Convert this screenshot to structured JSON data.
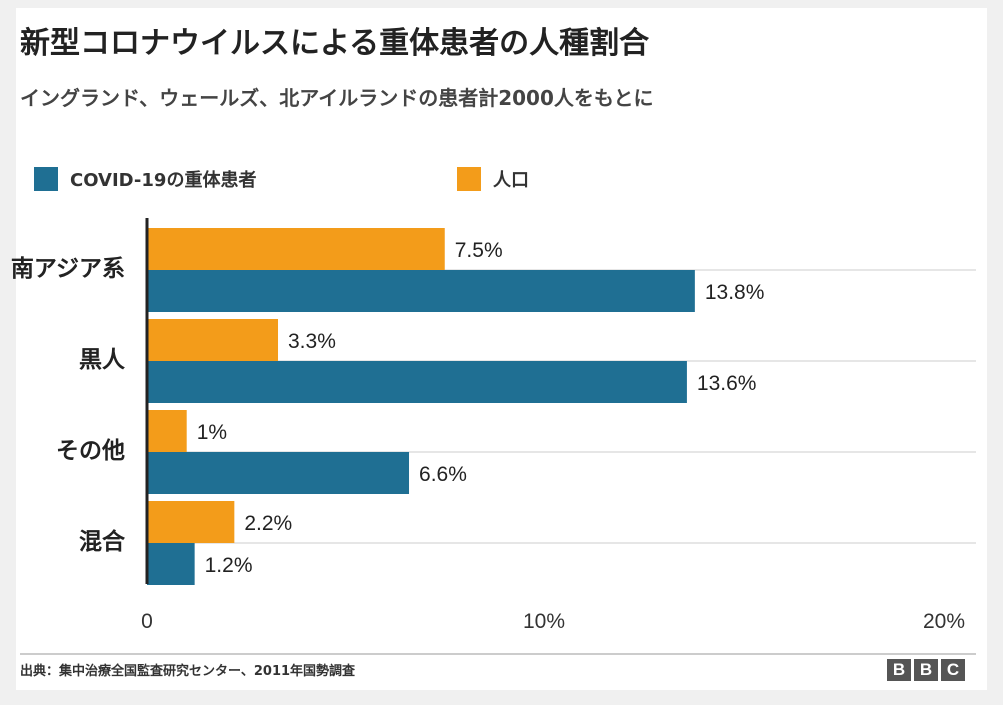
{
  "title": "新型コロナウイルスによる重体患者の人種割合",
  "subtitle": "イングランド、ウェールズ、北アイルランドの患者計2000人をもとに",
  "source": "出典：集中治療全国監査研究センター、2011年国勢調査",
  "logo": {
    "letters": [
      "B",
      "B",
      "C"
    ]
  },
  "colors": {
    "covid": "#1f6f93",
    "population": "#f39c1a"
  },
  "chart_data": {
    "type": "bar",
    "orientation": "horizontal",
    "categories": [
      "南アジア系",
      "黒人",
      "その他",
      "混合"
    ],
    "series": [
      {
        "name": "人口",
        "values": [
          7.5,
          3.3,
          1,
          2.2
        ],
        "labels": [
          "7.5%",
          "3.3%",
          "1%",
          "2.2%"
        ]
      },
      {
        "name": "COVID-19の重体患者",
        "values": [
          13.8,
          13.6,
          6.6,
          1.2
        ],
        "labels": [
          "13.8%",
          "13.6%",
          "6.6%",
          "1.2%"
        ]
      }
    ],
    "legend": [
      {
        "name": "COVID-19の重体患者",
        "series": 1
      },
      {
        "name": "人口",
        "series": 0
      }
    ],
    "legend_position": "top-left",
    "x_ticks": [
      "0",
      "10%",
      "20%"
    ],
    "x_tick_values": [
      0,
      10,
      20
    ],
    "xlim": [
      0,
      20
    ],
    "grid": true,
    "unit": "%"
  }
}
